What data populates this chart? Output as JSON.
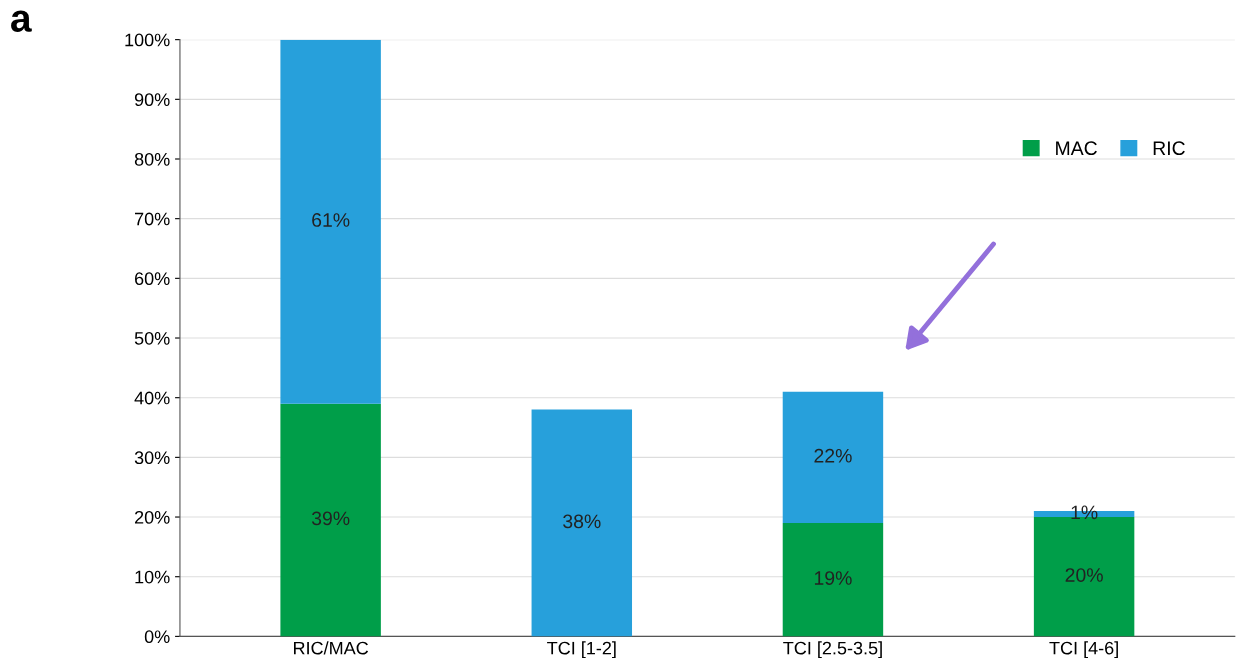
{
  "chart_data": {
    "type": "bar",
    "stacked": true,
    "categories": [
      "RIC/MAC",
      "TCI [1-2]",
      "TCI [2.5-3.5]",
      "TCI [4-6]"
    ],
    "series": [
      {
        "name": "MAC",
        "color": "#009e49",
        "values": [
          39,
          0,
          19,
          20
        ],
        "value_labels": [
          "39%",
          null,
          "19%",
          "20%"
        ]
      },
      {
        "name": "RIC",
        "color": "#27a0db",
        "values": [
          61,
          38,
          22,
          1
        ],
        "value_labels": [
          "61%",
          "38%",
          "22%",
          "1%"
        ]
      }
    ],
    "ylim": [
      0,
      100
    ],
    "yticks": [
      {
        "value": 0,
        "label": "0%"
      },
      {
        "value": 10,
        "label": "10%"
      },
      {
        "value": 20,
        "label": "20%"
      },
      {
        "value": 30,
        "label": "30%"
      },
      {
        "value": 40,
        "label": "40%"
      },
      {
        "value": 50,
        "label": "50%"
      },
      {
        "value": 60,
        "label": "60%"
      },
      {
        "value": 70,
        "label": "70%"
      },
      {
        "value": 80,
        "label": "80%"
      },
      {
        "value": 90,
        "label": "90%"
      },
      {
        "value": 100,
        "label": "100%"
      }
    ],
    "grid": "y",
    "legend": "top right",
    "annotations": [
      "a"
    ]
  }
}
